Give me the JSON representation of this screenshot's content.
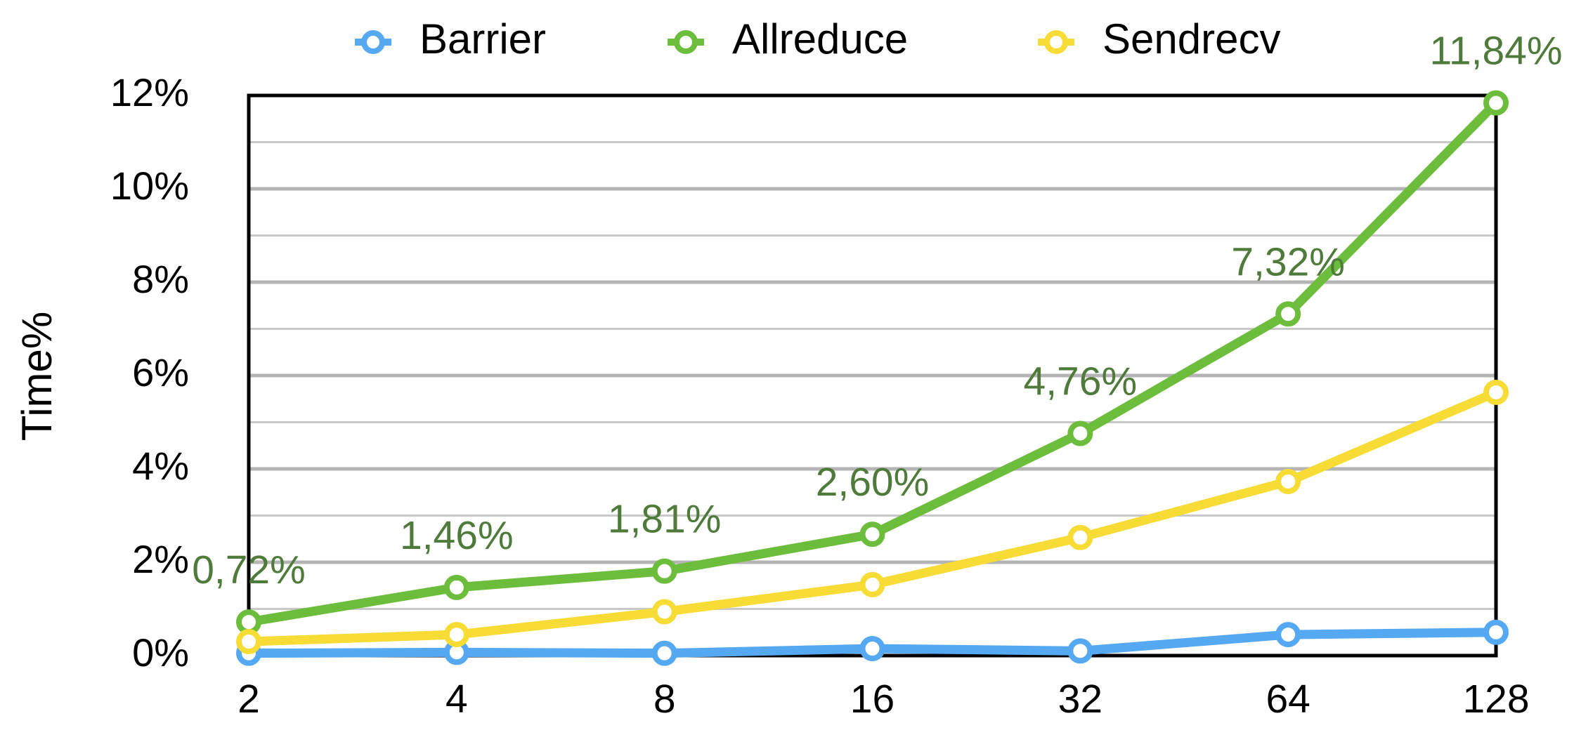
{
  "chart_data": {
    "type": "line",
    "y_label": "Time%",
    "categories": [
      "2",
      "4",
      "8",
      "16",
      "32",
      "64",
      "128"
    ],
    "series": [
      {
        "name": "Barrier",
        "color": "#55a8f2",
        "values": [
          0.05,
          0.07,
          0.05,
          0.15,
          0.1,
          0.45,
          0.5
        ]
      },
      {
        "name": "Allreduce",
        "color": "#6dbd3c",
        "values": [
          0.72,
          1.46,
          1.81,
          2.6,
          4.76,
          7.32,
          11.84
        ],
        "value_labels": [
          "0,72%",
          "1,46%",
          "1,81%",
          "2,60%",
          "4,76%",
          "7,32%",
          "11,84%"
        ],
        "label_color": "#4e7a3a"
      },
      {
        "name": "Sendrecv",
        "color": "#f6dc34",
        "values": [
          0.3,
          0.45,
          0.94,
          1.52,
          2.53,
          3.73,
          5.64
        ]
      }
    ],
    "ylim": [
      0,
      12
    ],
    "yticks": [
      {
        "value": 0,
        "label": "0%"
      },
      {
        "value": 2,
        "label": "2%"
      },
      {
        "value": 4,
        "label": "4%"
      },
      {
        "value": 6,
        "label": "6%"
      },
      {
        "value": 8,
        "label": "8%"
      },
      {
        "value": 10,
        "label": "10%"
      },
      {
        "value": 12,
        "label": "12%"
      }
    ],
    "y_minor_ticks": [
      1,
      3,
      5,
      7,
      9,
      11
    ],
    "grid": true,
    "legend": "top"
  }
}
